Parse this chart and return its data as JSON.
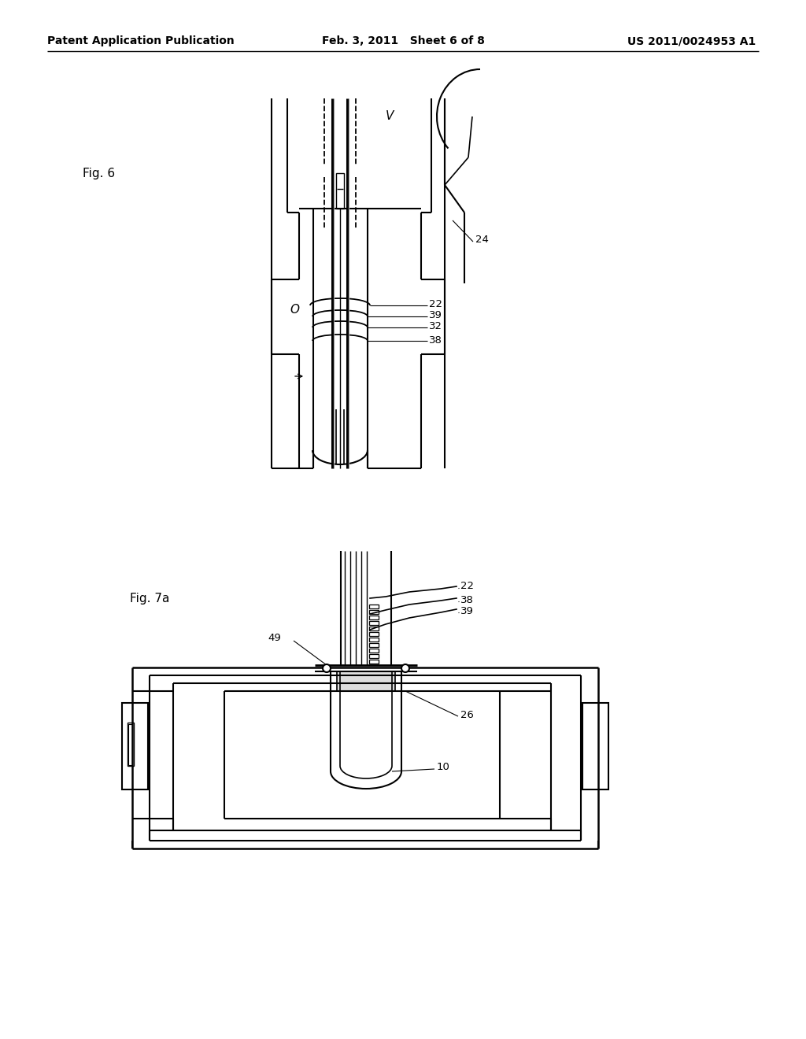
{
  "bg_color": "#ffffff",
  "header_left": "Patent Application Publication",
  "header_mid": "Feb. 3, 2011   Sheet 6 of 8",
  "header_right": "US 2011/0024953 A1",
  "fig6_label": "Fig. 6",
  "fig7a_label": "Fig. 7a",
  "label_24": "24",
  "label_22": "22",
  "label_39": "39",
  "label_32": "32",
  "label_38": "38",
  "label_V": "V",
  "label_O": "O",
  "label_49": "49",
  "label_26": "26",
  "label_10": "10",
  "label_22b": "22",
  "label_38b": "38",
  "label_39b": "39"
}
